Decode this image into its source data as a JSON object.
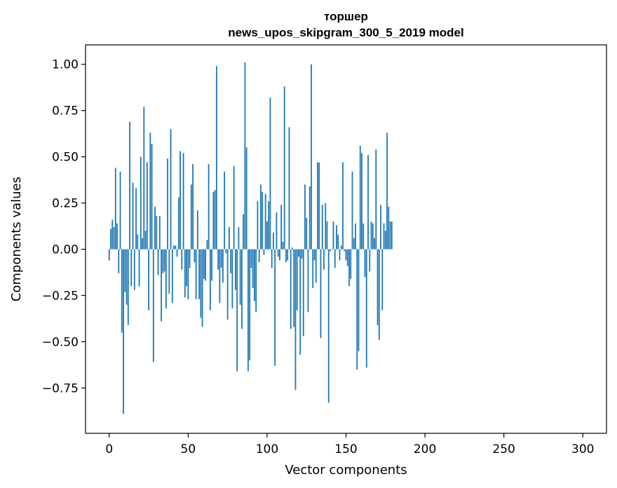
{
  "chart_data": {
    "type": "bar",
    "title_line1": "торшер",
    "title_line2": "news_upos_skipgram_300_5_2019 model",
    "xlabel": "Vector components",
    "ylabel": "Components values",
    "xlim": [
      -15,
      315
    ],
    "ylim": [
      -0.995,
      1.105
    ],
    "x_ticks": [
      0,
      50,
      100,
      150,
      200,
      250,
      300
    ],
    "x_tick_labels": [
      "0",
      "50",
      "100",
      "150",
      "200",
      "250",
      "300"
    ],
    "y_ticks": [
      1.0,
      0.75,
      0.5,
      0.25,
      0.0,
      -0.25,
      -0.5,
      -0.75
    ],
    "y_tick_labels": [
      "1.00",
      "0.75",
      "0.50",
      "0.25",
      "0.00",
      "−0.25",
      "−0.50",
      "−0.75"
    ],
    "bar_color": "#1f77b4",
    "values": [
      -0.06,
      0.11,
      0.16,
      0.12,
      0.44,
      0.14,
      -0.13,
      0.42,
      -0.45,
      -0.89,
      -0.23,
      -0.3,
      -0.41,
      0.69,
      -0.2,
      0.36,
      -0.22,
      0.33,
      0.08,
      -0.2,
      0.5,
      0.06,
      0.77,
      0.1,
      0.47,
      -0.33,
      0.63,
      0.57,
      -0.61,
      0.23,
      0.18,
      -0.14,
      0.18,
      -0.39,
      -0.13,
      -0.12,
      -0.32,
      0.49,
      -0.24,
      0.65,
      -0.29,
      0.02,
      0.02,
      -0.04,
      0.28,
      0.53,
      -0.11,
      0.52,
      -0.26,
      -0.2,
      -0.27,
      -0.1,
      0.35,
      0.46,
      -0.07,
      -0.27,
      0.21,
      -0.27,
      -0.37,
      -0.42,
      -0.16,
      -0.17,
      0.05,
      0.46,
      -0.33,
      -0.17,
      0.31,
      0.32,
      0.99,
      -0.11,
      -0.29,
      -0.1,
      -0.18,
      0.42,
      -0.02,
      -0.38,
      0.12,
      -0.13,
      -0.32,
      0.45,
      -0.22,
      -0.66,
      0.12,
      -0.3,
      -0.43,
      0.19,
      1.01,
      0.55,
      -0.66,
      -0.6,
      -0.1,
      -0.21,
      -0.28,
      -0.34,
      0.26,
      -0.07,
      0.35,
      0.31,
      -0.03,
      0.3,
      0.15,
      0.26,
      0.82,
      -0.1,
      0.09,
      -0.63,
      0.2,
      -0.04,
      -0.06,
      0.24,
      0.04,
      0.88,
      -0.07,
      -0.06,
      0.66,
      -0.43,
      0.01,
      -0.42,
      -0.76,
      -0.33,
      -0.04,
      -0.57,
      -0.05,
      -0.47,
      0.35,
      0.17,
      -0.34,
      0.34,
      1.0,
      -0.21,
      -0.06,
      -0.18,
      0.47,
      0.47,
      -0.48,
      0.24,
      -0.11,
      0.25,
      0.15,
      -0.83,
      -0.01,
      0.0,
      0.15,
      -0.1,
      0.13,
      0.08,
      -0.06,
      0.02,
      0.47,
      -0.01,
      -0.06,
      -0.09,
      -0.2,
      -0.16,
      0.42,
      0.06,
      0.14,
      -0.65,
      -0.55,
      0.56,
      0.52,
      0.14,
      -0.15,
      -0.64,
      0.51,
      -0.12,
      0.15,
      0.14,
      0.06,
      0.54,
      -0.41,
      -0.49,
      0.24,
      -0.33,
      0.14,
      0.1,
      0.63,
      0.23,
      0.15,
      0.15
    ]
  }
}
